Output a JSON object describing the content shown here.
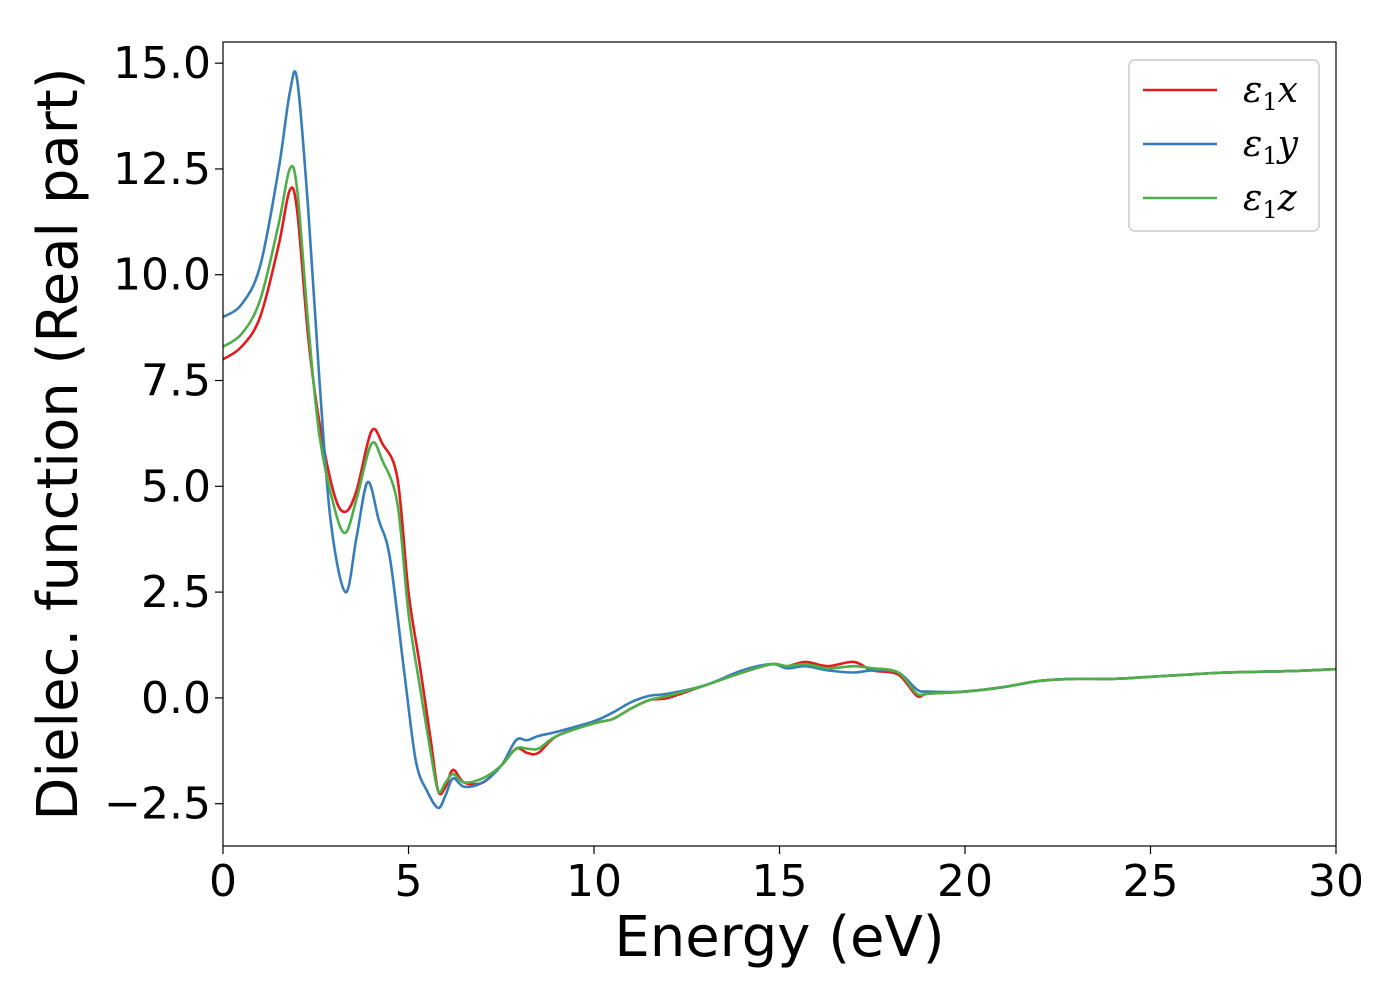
{
  "chart_data": {
    "type": "line",
    "xlabel": "Energy (eV)",
    "ylabel": "Dielec. function (Real part)",
    "xlim": [
      0,
      30
    ],
    "ylim": [
      -3.5,
      15.5
    ],
    "xticks": [
      0,
      5,
      10,
      15,
      20,
      25,
      30
    ],
    "xtick_labels": [
      "0",
      "5",
      "10",
      "15",
      "20",
      "25",
      "30"
    ],
    "yticks": [
      -2.5,
      0.0,
      2.5,
      5.0,
      7.5,
      10.0,
      12.5,
      15.0
    ],
    "ytick_labels": [
      "−2.5",
      "0.0",
      "2.5",
      "5.0",
      "7.5",
      "10.0",
      "12.5",
      "15.0"
    ],
    "grid": false,
    "legend_position": "top-right",
    "series": [
      {
        "name": "ε1x",
        "legend_main": "ε",
        "legend_sub": "1",
        "legend_tail": "x",
        "color": "#e41a1c",
        "x": [
          0,
          0.5,
          1.0,
          1.5,
          1.8,
          2.0,
          2.3,
          2.6,
          3.0,
          3.3,
          3.6,
          4.0,
          4.3,
          4.7,
          5.0,
          5.3,
          5.6,
          5.8,
          6.0,
          6.2,
          6.5,
          7.0,
          7.5,
          7.9,
          8.2,
          8.5,
          9.0,
          10.0,
          10.5,
          11.0,
          11.5,
          12.0,
          13.0,
          14.0,
          14.8,
          15.2,
          15.7,
          16.3,
          17.0,
          17.5,
          18.2,
          18.7,
          19.0,
          20.0,
          21.0,
          22.0,
          23.0,
          24.0,
          25.0,
          26.0,
          27.0,
          28.0,
          29.0,
          30.0
        ],
        "y": [
          8.0,
          8.3,
          9.0,
          10.7,
          12.0,
          11.5,
          8.5,
          6.5,
          4.8,
          4.4,
          4.9,
          6.3,
          6.0,
          5.2,
          2.5,
          0.8,
          -1.0,
          -2.2,
          -2.1,
          -1.7,
          -2.0,
          -2.0,
          -1.6,
          -1.2,
          -1.3,
          -1.3,
          -0.9,
          -0.6,
          -0.5,
          -0.25,
          -0.05,
          0.0,
          0.3,
          0.6,
          0.8,
          0.75,
          0.85,
          0.75,
          0.85,
          0.65,
          0.55,
          0.05,
          0.1,
          0.15,
          0.25,
          0.4,
          0.45,
          0.45,
          0.5,
          0.55,
          0.6,
          0.62,
          0.64,
          0.68
        ]
      },
      {
        "name": "ε1y",
        "legend_main": "ε",
        "legend_sub": "1",
        "legend_tail": "y",
        "color": "#377eb8",
        "x": [
          0,
          0.5,
          1.0,
          1.5,
          1.8,
          2.0,
          2.3,
          2.6,
          2.9,
          3.3,
          3.6,
          3.9,
          4.2,
          4.5,
          4.9,
          5.2,
          5.5,
          5.8,
          6.0,
          6.2,
          6.5,
          7.0,
          7.5,
          7.9,
          8.2,
          8.5,
          9.0,
          10.0,
          10.5,
          11.0,
          11.5,
          12.0,
          13.0,
          14.0,
          14.8,
          15.2,
          15.7,
          16.3,
          17.0,
          17.5,
          18.2,
          18.7,
          19.0,
          20.0,
          21.0,
          22.0,
          23.0,
          24.0,
          25.0,
          26.0,
          27.0,
          28.0,
          29.0,
          30.0
        ],
        "y": [
          9.0,
          9.3,
          10.2,
          12.5,
          14.3,
          14.6,
          11.5,
          7.5,
          4.2,
          2.5,
          3.8,
          5.1,
          4.2,
          3.3,
          0.5,
          -1.5,
          -2.2,
          -2.6,
          -2.3,
          -1.9,
          -2.1,
          -2.0,
          -1.6,
          -1.0,
          -1.0,
          -0.9,
          -0.8,
          -0.55,
          -0.35,
          -0.1,
          0.05,
          0.1,
          0.3,
          0.65,
          0.8,
          0.7,
          0.75,
          0.65,
          0.6,
          0.65,
          0.6,
          0.2,
          0.15,
          0.15,
          0.25,
          0.4,
          0.45,
          0.45,
          0.5,
          0.55,
          0.6,
          0.62,
          0.64,
          0.68
        ]
      },
      {
        "name": "ε1z",
        "legend_main": "ε",
        "legend_sub": "1",
        "legend_tail": "z",
        "color": "#4daf4a",
        "x": [
          0,
          0.5,
          1.0,
          1.5,
          1.8,
          2.0,
          2.3,
          2.6,
          3.0,
          3.3,
          3.6,
          4.0,
          4.3,
          4.7,
          5.0,
          5.3,
          5.6,
          5.8,
          6.0,
          6.2,
          6.5,
          7.0,
          7.5,
          7.9,
          8.2,
          8.5,
          9.0,
          10.0,
          10.5,
          11.0,
          11.5,
          12.0,
          13.0,
          14.0,
          14.8,
          15.2,
          15.7,
          16.3,
          17.0,
          17.5,
          18.2,
          18.7,
          19.0,
          20.0,
          21.0,
          22.0,
          23.0,
          24.0,
          25.0,
          26.0,
          27.0,
          28.0,
          29.0,
          30.0
        ],
        "y": [
          8.3,
          8.6,
          9.4,
          11.2,
          12.5,
          12.0,
          8.8,
          6.2,
          4.5,
          3.9,
          4.7,
          6.0,
          5.6,
          4.6,
          2.0,
          0.3,
          -1.3,
          -2.2,
          -2.0,
          -1.8,
          -2.0,
          -1.9,
          -1.6,
          -1.2,
          -1.2,
          -1.2,
          -0.9,
          -0.6,
          -0.5,
          -0.25,
          -0.05,
          0.05,
          0.3,
          0.6,
          0.8,
          0.75,
          0.8,
          0.7,
          0.75,
          0.7,
          0.6,
          0.1,
          0.1,
          0.15,
          0.25,
          0.4,
          0.45,
          0.45,
          0.5,
          0.55,
          0.6,
          0.62,
          0.64,
          0.68
        ]
      }
    ]
  }
}
